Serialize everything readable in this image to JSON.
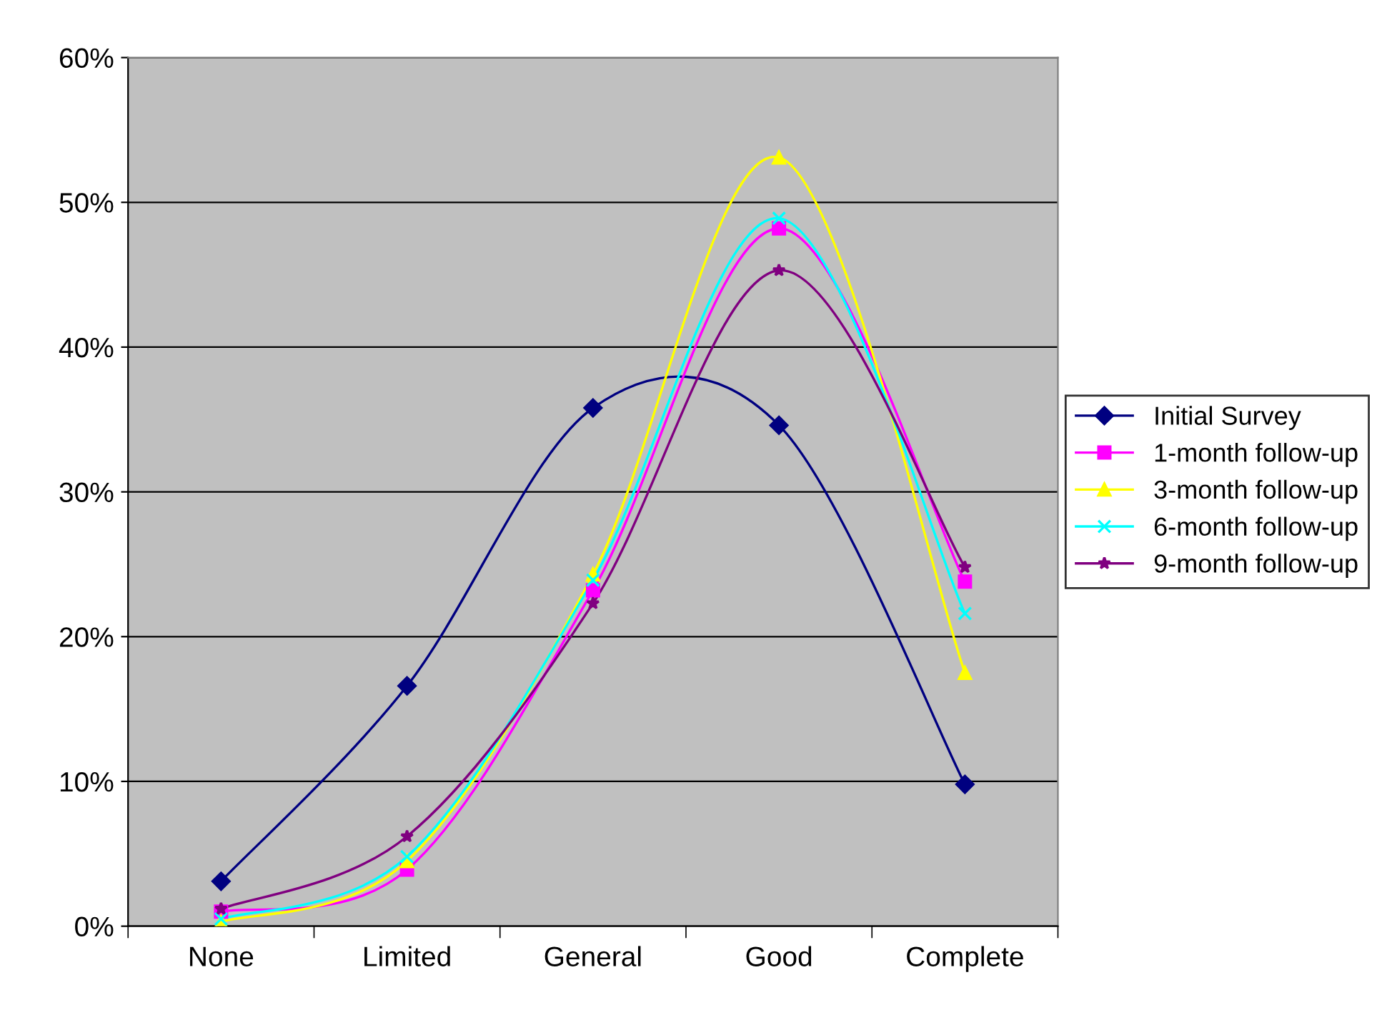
{
  "chart_data": {
    "type": "line",
    "categories": [
      "None",
      "Limited",
      "General",
      "Good",
      "Complete"
    ],
    "series": [
      {
        "name": "Initial Survey",
        "color": "#000080",
        "marker": "diamond",
        "values": [
          3.1,
          16.6,
          35.8,
          34.6,
          9.8
        ]
      },
      {
        "name": "1-month follow-up",
        "color": "#ff00ff",
        "marker": "square",
        "values": [
          1.0,
          3.9,
          23.2,
          48.2,
          23.8
        ]
      },
      {
        "name": "3-month follow-up",
        "color": "#ffff00",
        "marker": "triangle",
        "values": [
          0.3,
          4.5,
          24.3,
          53.1,
          17.5
        ]
      },
      {
        "name": "6-month follow-up",
        "color": "#00ffff",
        "marker": "cross",
        "values": [
          0.5,
          4.8,
          23.9,
          48.9,
          21.6
        ]
      },
      {
        "name": "9-month follow-up",
        "color": "#800080",
        "marker": "star",
        "values": [
          1.2,
          6.2,
          22.3,
          45.3,
          24.8
        ]
      }
    ],
    "ylim": [
      0,
      60
    ],
    "yticks": [
      {
        "value": 0,
        "label": "0%"
      },
      {
        "value": 10,
        "label": "10%"
      },
      {
        "value": 20,
        "label": "20%"
      },
      {
        "value": 30,
        "label": "30%"
      },
      {
        "value": 40,
        "label": "40%"
      },
      {
        "value": 50,
        "label": "50%"
      },
      {
        "value": 60,
        "label": "60%"
      }
    ],
    "grid": "y",
    "legend": "right",
    "line_style": "solid"
  }
}
